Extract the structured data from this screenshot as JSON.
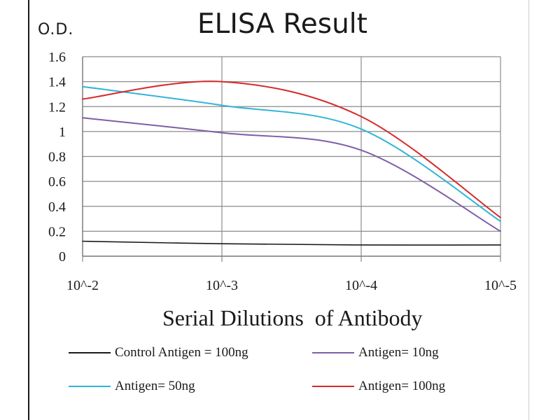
{
  "chart_data": {
    "type": "line",
    "title": "ELISA Result",
    "ylabel": "O.D.",
    "xlabel": "Serial Dilutions  of Antibody",
    "categories": [
      "10^-2",
      "10^-3",
      "10^-4",
      "10^-5"
    ],
    "y_ticks": [
      "0",
      "0.2",
      "0.4",
      "0.6",
      "0.8",
      "1",
      "1.2",
      "1.4",
      "1.6"
    ],
    "ylim": [
      0,
      1.6
    ],
    "grid": true,
    "legend_position": "bottom",
    "series": [
      {
        "name": "Control Antigen = 100ng",
        "color": "#1a1a1a",
        "values": [
          0.12,
          0.1,
          0.09,
          0.09
        ]
      },
      {
        "name": "Antigen= 10ng",
        "color": "#7f5ea8",
        "values": [
          1.11,
          0.99,
          0.85,
          0.2
        ]
      },
      {
        "name": "Antigen= 50ng",
        "color": "#32b4d8",
        "values": [
          1.36,
          1.21,
          1.02,
          0.28
        ]
      },
      {
        "name": "Antigen= 100ng",
        "color": "#d62a2a",
        "values": [
          1.26,
          1.4,
          1.12,
          0.31
        ]
      }
    ]
  }
}
